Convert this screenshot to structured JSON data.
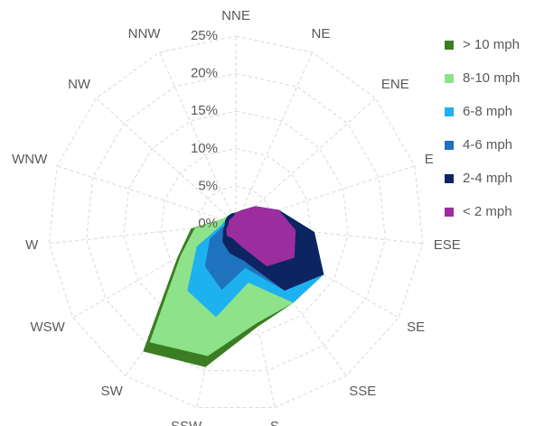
{
  "chart_data": {
    "type": "radar",
    "categories": [
      "NNE",
      "NE",
      "ENE",
      "E",
      "ESE",
      "SE",
      "SSE",
      "S",
      "SSW",
      "SW",
      "WSW",
      "W",
      "WNW",
      "NW",
      "NNW"
    ],
    "series": [
      {
        "name": "> 10 mph",
        "color": "#3b7d23",
        "values": [
          1.5,
          2,
          3.5,
          6,
          10.5,
          13.5,
          13,
          14,
          19.5,
          21,
          9,
          6,
          2,
          1.5,
          1.5
        ]
      },
      {
        "name": "8-10 mph",
        "color": "#8ee38a",
        "values": [
          1.5,
          2,
          3.5,
          6,
          10.5,
          13.5,
          13,
          13.5,
          18,
          19.5,
          8.5,
          5.5,
          2,
          1.5,
          1.5
        ]
      },
      {
        "name": "6-8 mph",
        "color": "#1eb1ef",
        "values": [
          1.5,
          2,
          3.5,
          6,
          10.5,
          13.5,
          13,
          8,
          12.7,
          11,
          6,
          2,
          1.5,
          1.5,
          1.5
        ]
      },
      {
        "name": "4-6 mph",
        "color": "#1f72bd",
        "values": [
          1.5,
          2,
          3.5,
          6,
          10.5,
          13.5,
          11,
          6,
          9,
          7,
          4,
          1.5,
          1.5,
          1.5,
          1.5
        ]
      },
      {
        "name": "2-4 mph",
        "color": "#0c2461",
        "values": [
          1.5,
          2,
          3.5,
          6,
          10.5,
          13.5,
          11,
          5,
          4,
          3,
          2,
          1.5,
          1.5,
          1.5,
          1.5
        ]
      },
      {
        "name": "< 2 mph",
        "color": "#9b2d9e",
        "values": [
          1.5,
          2,
          3.5,
          6,
          8,
          9,
          7,
          3,
          2,
          2,
          1.5,
          1,
          1,
          1,
          1
        ]
      }
    ],
    "ylim": [
      0,
      25
    ],
    "yticks": [
      {
        "value": 0,
        "label": "0%"
      },
      {
        "value": 5,
        "label": "5%"
      },
      {
        "value": 10,
        "label": "10%"
      },
      {
        "value": 15,
        "label": "15%"
      },
      {
        "value": 20,
        "label": "20%"
      },
      {
        "value": 25,
        "label": "25%"
      }
    ],
    "grid": true,
    "legend": "right"
  }
}
